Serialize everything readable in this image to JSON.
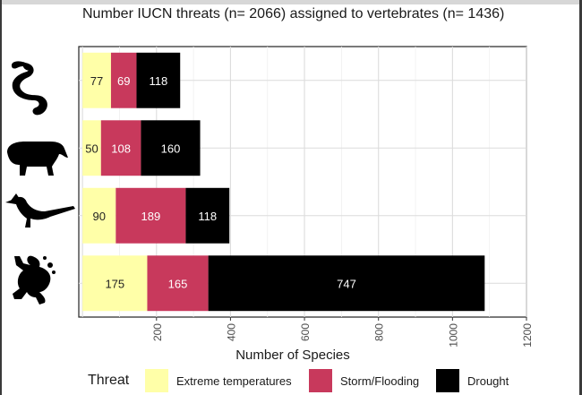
{
  "title": "Number IUCN threats (n= 2066) assigned to vertebrates (n= 1436)",
  "chart_data": {
    "type": "bar",
    "orientation": "horizontal",
    "stacked": true,
    "categories": [
      "snake",
      "tapir",
      "bird",
      "frog"
    ],
    "category_icons": [
      "snake-icon",
      "tapir-icon",
      "roadrunner-bird-icon",
      "frog-icon"
    ],
    "series": [
      {
        "name": "Extreme temperatures",
        "color": "#ffffa8",
        "label_color": "#222222",
        "values": [
          77,
          50,
          90,
          175
        ]
      },
      {
        "name": "Storm/Flooding",
        "color": "#c8395c",
        "label_color": "#ffffff",
        "values": [
          69,
          108,
          189,
          165
        ]
      },
      {
        "name": "Drought",
        "color": "#000000",
        "label_color": "#ffffff",
        "values": [
          118,
          160,
          118,
          747
        ]
      }
    ],
    "xlabel": "Number of Species",
    "xticks": [
      200,
      400,
      600,
      800,
      1000,
      1200
    ],
    "xlim": [
      -10,
      1200
    ],
    "grid": true,
    "legend_title": "Threat",
    "legend_position": "bottom"
  }
}
